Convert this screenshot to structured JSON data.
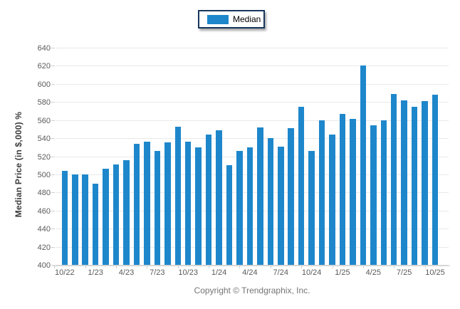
{
  "legend": {
    "label": "Median",
    "swatch_color": "#1e87cb",
    "border_color": "#17375d"
  },
  "footer": {
    "copyright": "Copyright © Trendgraphix, Inc."
  },
  "chart_data": {
    "type": "bar",
    "title": "",
    "xlabel": "",
    "ylabel": "Median Price (in $,000) %",
    "ylim": [
      400,
      640
    ],
    "ytick_step": 20,
    "grid": "horizontal",
    "legend_position": "top-center",
    "bar_color": "#1e87cb",
    "categories": [
      "10/22",
      "11/22",
      "12/22",
      "1/23",
      "2/23",
      "3/23",
      "4/23",
      "5/23",
      "6/23",
      "7/23",
      "8/23",
      "9/23",
      "10/23",
      "11/23",
      "12/23",
      "1/24",
      "2/24",
      "3/24",
      "4/24",
      "5/24",
      "6/24",
      "7/24",
      "8/24",
      "9/24",
      "10/24",
      "11/24",
      "12/24",
      "1/25",
      "2/25",
      "3/25",
      "4/25",
      "5/25",
      "6/25",
      "7/25",
      "8/25",
      "9/25",
      "10/25"
    ],
    "x_tick_every": 3,
    "x_tick_labels": [
      "10/22",
      "1/23",
      "4/23",
      "7/23",
      "10/23",
      "1/24",
      "4/24",
      "7/24",
      "10/24",
      "1/25",
      "4/25",
      "7/25",
      "10/25"
    ],
    "series": [
      {
        "name": "Median",
        "values": [
          504,
          500,
          500,
          490,
          506,
          511,
          516,
          534,
          536,
          526,
          535,
          553,
          536,
          530,
          544,
          549,
          510,
          526,
          530,
          552,
          540,
          531,
          551,
          575,
          526,
          560,
          544,
          567,
          561,
          620,
          554,
          560,
          589,
          582,
          575,
          581,
          588
        ]
      }
    ]
  }
}
